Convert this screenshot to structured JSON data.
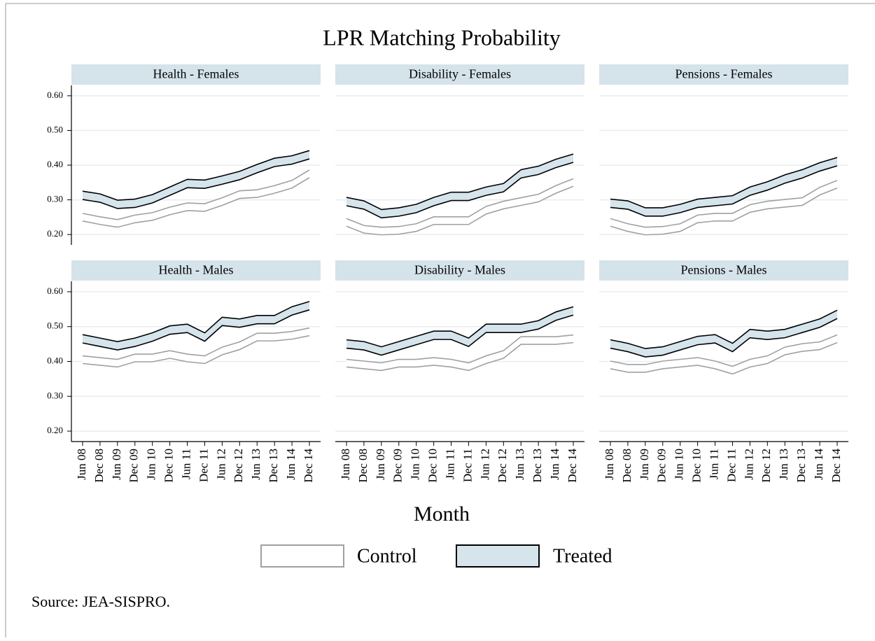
{
  "title": "LPR Matching Probability",
  "xlabel": "Month",
  "source": "Source: JEA-SISPRO.",
  "chart_data": [
    {
      "type": "band",
      "title": "Health - Females",
      "ylim": [
        0.17,
        0.63
      ],
      "yticks": [
        {
          "value": 0.2,
          "label": "0.20"
        },
        {
          "value": 0.3,
          "label": "0.30"
        },
        {
          "value": 0.4,
          "label": "0.40"
        },
        {
          "value": 0.5,
          "label": "0.50"
        },
        {
          "value": 0.6,
          "label": "0.60"
        }
      ],
      "grid": true,
      "series": [
        {
          "name": "Control",
          "color": "#a0a0a0",
          "fill": "#ffffff",
          "lower": [
            0.239,
            0.229,
            0.221,
            0.234,
            0.241,
            0.257,
            0.269,
            0.267,
            0.284,
            0.304,
            0.307,
            0.319,
            0.334,
            0.364
          ],
          "upper": [
            0.261,
            0.251,
            0.243,
            0.256,
            0.263,
            0.279,
            0.291,
            0.289,
            0.306,
            0.326,
            0.329,
            0.341,
            0.356,
            0.386
          ]
        },
        {
          "name": "Treated",
          "color": "#000000",
          "fill": "#d6e4ec",
          "lower": [
            0.301,
            0.293,
            0.275,
            0.278,
            0.291,
            0.313,
            0.335,
            0.333,
            0.345,
            0.358,
            0.378,
            0.396,
            0.403,
            0.418
          ],
          "upper": [
            0.325,
            0.317,
            0.299,
            0.302,
            0.315,
            0.337,
            0.359,
            0.357,
            0.369,
            0.382,
            0.402,
            0.42,
            0.427,
            0.442
          ]
        }
      ]
    },
    {
      "type": "band",
      "title": "Disability - Females",
      "ylim": [
        0.17,
        0.63
      ],
      "yticks": [
        0.2,
        0.3,
        0.4,
        0.5,
        0.6
      ],
      "grid": true,
      "series": [
        {
          "color": "#a0a0a0",
          "fill": "#ffffff",
          "lower": [
            0.224,
            0.204,
            0.199,
            0.201,
            0.209,
            0.229,
            0.229,
            0.229,
            0.259,
            0.274,
            0.284,
            0.294,
            0.319,
            0.339
          ],
          "upper": [
            0.246,
            0.226,
            0.221,
            0.223,
            0.231,
            0.251,
            0.251,
            0.251,
            0.281,
            0.296,
            0.306,
            0.316,
            0.341,
            0.361
          ]
        },
        {
          "color": "#000000",
          "fill": "#d6e4ec",
          "lower": [
            0.283,
            0.273,
            0.248,
            0.253,
            0.263,
            0.283,
            0.298,
            0.298,
            0.313,
            0.323,
            0.363,
            0.373,
            0.393,
            0.408
          ],
          "upper": [
            0.307,
            0.297,
            0.272,
            0.277,
            0.287,
            0.307,
            0.322,
            0.322,
            0.337,
            0.347,
            0.387,
            0.397,
            0.417,
            0.432
          ]
        }
      ]
    },
    {
      "type": "band",
      "title": "Pensions - Females",
      "ylim": [
        0.17,
        0.63
      ],
      "yticks": [
        0.2,
        0.3,
        0.4,
        0.5,
        0.6
      ],
      "grid": true,
      "series": [
        {
          "color": "#a0a0a0",
          "fill": "#ffffff",
          "lower": [
            0.224,
            0.209,
            0.199,
            0.201,
            0.209,
            0.234,
            0.239,
            0.239,
            0.264,
            0.274,
            0.279,
            0.284,
            0.314,
            0.334
          ],
          "upper": [
            0.246,
            0.231,
            0.221,
            0.223,
            0.231,
            0.256,
            0.261,
            0.261,
            0.286,
            0.296,
            0.301,
            0.306,
            0.336,
            0.356
          ]
        },
        {
          "color": "#000000",
          "fill": "#d6e4ec",
          "lower": [
            0.278,
            0.273,
            0.253,
            0.253,
            0.263,
            0.278,
            0.283,
            0.288,
            0.313,
            0.328,
            0.348,
            0.363,
            0.383,
            0.398
          ],
          "upper": [
            0.302,
            0.297,
            0.277,
            0.277,
            0.287,
            0.302,
            0.307,
            0.312,
            0.337,
            0.352,
            0.372,
            0.387,
            0.407,
            0.422
          ]
        }
      ]
    },
    {
      "type": "band",
      "title": "Health - Males",
      "ylim": [
        0.17,
        0.63
      ],
      "yticks": [
        {
          "value": 0.2,
          "label": "0.20"
        },
        {
          "value": 0.3,
          "label": "0.30"
        },
        {
          "value": 0.4,
          "label": "0.40"
        },
        {
          "value": 0.5,
          "label": "0.50"
        },
        {
          "value": 0.6,
          "label": "0.60"
        }
      ],
      "grid": true,
      "categories": [
        "Jun 08",
        "Dec 08",
        "Jun 09",
        "Dec 09",
        "Jun 10",
        "Dec 10",
        "Jun 11",
        "Dec 11",
        "Jun 12",
        "Dec 12",
        "Jun 13",
        "Dec 13",
        "Jun 14",
        "Dec 14"
      ],
      "series": [
        {
          "color": "#a0a0a0",
          "fill": "#ffffff",
          "lower": [
            0.394,
            0.389,
            0.384,
            0.399,
            0.399,
            0.409,
            0.399,
            0.394,
            0.419,
            0.434,
            0.459,
            0.459,
            0.464,
            0.474
          ],
          "upper": [
            0.416,
            0.411,
            0.406,
            0.421,
            0.421,
            0.431,
            0.421,
            0.416,
            0.441,
            0.456,
            0.481,
            0.481,
            0.486,
            0.496
          ]
        },
        {
          "color": "#000000",
          "fill": "#d6e4ec",
          "lower": [
            0.453,
            0.443,
            0.433,
            0.443,
            0.458,
            0.478,
            0.483,
            0.458,
            0.503,
            0.498,
            0.508,
            0.508,
            0.533,
            0.548
          ],
          "upper": [
            0.477,
            0.467,
            0.457,
            0.467,
            0.482,
            0.502,
            0.507,
            0.482,
            0.527,
            0.522,
            0.532,
            0.532,
            0.557,
            0.572
          ]
        }
      ]
    },
    {
      "type": "band",
      "title": "Disability - Males",
      "ylim": [
        0.17,
        0.63
      ],
      "yticks": [
        0.2,
        0.3,
        0.4,
        0.5,
        0.6
      ],
      "grid": true,
      "categories": [
        "Jun 08",
        "Dec 08",
        "Jun 09",
        "Dec 09",
        "Jun 10",
        "Dec 10",
        "Jun 11",
        "Dec 11",
        "Jun 12",
        "Dec 12",
        "Jun 13",
        "Dec 13",
        "Jun 14",
        "Dec 14"
      ],
      "series": [
        {
          "color": "#a0a0a0",
          "fill": "#ffffff",
          "lower": [
            0.384,
            0.379,
            0.374,
            0.384,
            0.384,
            0.389,
            0.384,
            0.374,
            0.394,
            0.409,
            0.449,
            0.449,
            0.449,
            0.454
          ],
          "upper": [
            0.406,
            0.401,
            0.396,
            0.406,
            0.406,
            0.411,
            0.406,
            0.396,
            0.416,
            0.431,
            0.471,
            0.471,
            0.471,
            0.476
          ]
        },
        {
          "color": "#000000",
          "fill": "#d6e4ec",
          "lower": [
            0.438,
            0.433,
            0.418,
            0.433,
            0.448,
            0.463,
            0.463,
            0.443,
            0.483,
            0.483,
            0.483,
            0.493,
            0.518,
            0.533
          ],
          "upper": [
            0.462,
            0.457,
            0.442,
            0.457,
            0.472,
            0.487,
            0.487,
            0.467,
            0.507,
            0.507,
            0.507,
            0.517,
            0.542,
            0.557
          ]
        }
      ]
    },
    {
      "type": "band",
      "title": "Pensions - Males",
      "ylim": [
        0.17,
        0.63
      ],
      "yticks": [
        0.2,
        0.3,
        0.4,
        0.5,
        0.6
      ],
      "grid": true,
      "categories": [
        "Jun 08",
        "Dec 08",
        "Jun 09",
        "Dec 09",
        "Jun 10",
        "Dec 10",
        "Jun 11",
        "Dec 11",
        "Jun 12",
        "Dec 12",
        "Jun 13",
        "Dec 13",
        "Jun 14",
        "Dec 14"
      ],
      "series": [
        {
          "color": "#a0a0a0",
          "fill": "#ffffff",
          "lower": [
            0.379,
            0.369,
            0.369,
            0.379,
            0.384,
            0.389,
            0.379,
            0.364,
            0.384,
            0.394,
            0.419,
            0.429,
            0.434,
            0.454
          ],
          "upper": [
            0.401,
            0.391,
            0.391,
            0.401,
            0.406,
            0.411,
            0.401,
            0.386,
            0.406,
            0.416,
            0.441,
            0.451,
            0.456,
            0.476
          ]
        },
        {
          "color": "#000000",
          "fill": "#d6e4ec",
          "lower": [
            0.438,
            0.428,
            0.413,
            0.418,
            0.433,
            0.448,
            0.453,
            0.428,
            0.468,
            0.463,
            0.468,
            0.483,
            0.498,
            0.523
          ],
          "upper": [
            0.462,
            0.452,
            0.437,
            0.442,
            0.457,
            0.472,
            0.477,
            0.452,
            0.492,
            0.487,
            0.492,
            0.507,
            0.522,
            0.547
          ]
        }
      ]
    }
  ]
}
